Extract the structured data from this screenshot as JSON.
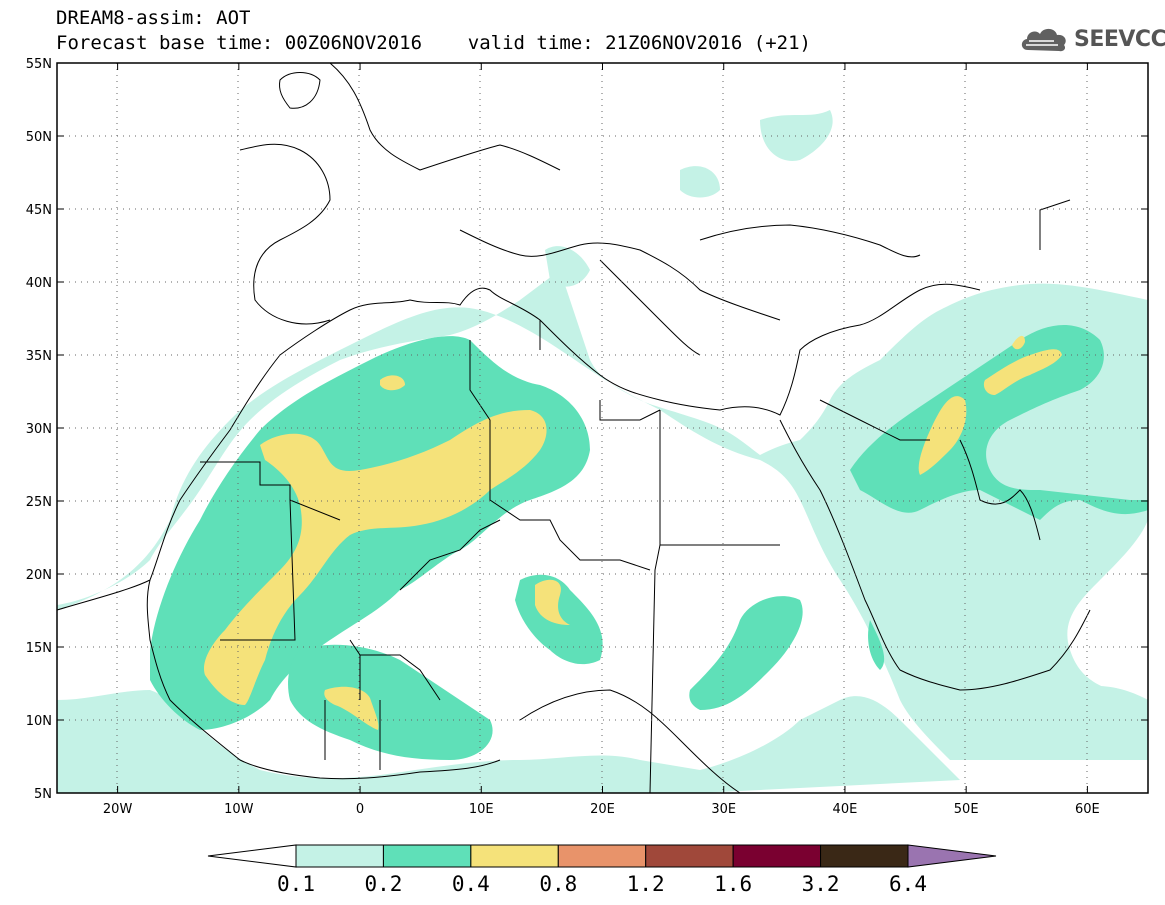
{
  "header": {
    "title_line1": "DREAM8-assim: AOT",
    "title_line2": "Forecast base time: 00Z06NOV2016    valid time: 21Z06NOV2016 (+21)",
    "logo_text": "SEEVCCC"
  },
  "map": {
    "type": "filled-contour-map",
    "variable": "AOT",
    "lon_range": [
      -25,
      65
    ],
    "lat_range": [
      5,
      55
    ],
    "lon_ticks": [
      {
        "value": -20,
        "label": "20W"
      },
      {
        "value": -10,
        "label": "10W"
      },
      {
        "value": 0,
        "label": "0"
      },
      {
        "value": 10,
        "label": "10E"
      },
      {
        "value": 20,
        "label": "20E"
      },
      {
        "value": 30,
        "label": "30E"
      },
      {
        "value": 40,
        "label": "40E"
      },
      {
        "value": 50,
        "label": "50E"
      },
      {
        "value": 60,
        "label": "60E"
      }
    ],
    "lat_ticks": [
      {
        "value": 5,
        "label": "5N"
      },
      {
        "value": 10,
        "label": "10N"
      },
      {
        "value": 15,
        "label": "15N"
      },
      {
        "value": 20,
        "label": "20N"
      },
      {
        "value": 25,
        "label": "25N"
      },
      {
        "value": 30,
        "label": "30N"
      },
      {
        "value": 35,
        "label": "35N"
      },
      {
        "value": 40,
        "label": "40N"
      },
      {
        "value": 45,
        "label": "45N"
      },
      {
        "value": 50,
        "label": "50N"
      },
      {
        "value": 55,
        "label": "55N"
      }
    ],
    "grid": true
  },
  "colorbar": {
    "levels": [
      "0.1",
      "0.2",
      "0.4",
      "0.8",
      "1.2",
      "1.6",
      "3.2",
      "6.4"
    ],
    "colors": [
      "#ffffff",
      "#c4f2e6",
      "#5fe0b8",
      "#f5e27a",
      "#e8936a",
      "#a0483a",
      "#7a0030",
      "#3a2816",
      "#9a74b0"
    ]
  }
}
